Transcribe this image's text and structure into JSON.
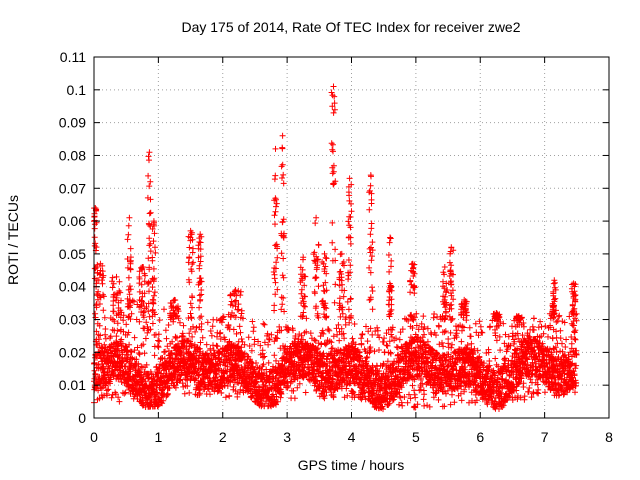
{
  "chart_data": {
    "type": "scatter",
    "title": "Day 175 of 2014, Rate Of TEC Index for receiver zwe2",
    "xlabel": "GPS time / hours",
    "ylabel": "ROTI / TECUs",
    "xlim": [
      0,
      8
    ],
    "ylim": [
      0,
      0.11
    ],
    "xticks": [
      0,
      1,
      2,
      3,
      4,
      5,
      6,
      7,
      8
    ],
    "yticks": [
      0,
      0.01,
      0.02,
      0.03,
      0.04,
      0.05,
      0.06,
      0.07,
      0.08,
      0.09,
      0.1,
      0.11
    ],
    "grid": true,
    "marker": "+",
    "series": [
      {
        "name": "ROTI",
        "color": "#ff0000",
        "x_range": [
          0,
          7.5
        ],
        "sample_step_hours": 0.0042,
        "band_min": [
          [
            0,
            0.004
          ],
          [
            1,
            0.006
          ],
          [
            2,
            0.006
          ],
          [
            3,
            0.006
          ],
          [
            4,
            0.006
          ],
          [
            5,
            0.003
          ],
          [
            6,
            0.004
          ],
          [
            7,
            0.006
          ],
          [
            7.5,
            0.007
          ]
        ],
        "band_max": [
          [
            0,
            0.028
          ],
          [
            0.3,
            0.034
          ],
          [
            0.6,
            0.036
          ],
          [
            1,
            0.034
          ],
          [
            1.5,
            0.03
          ],
          [
            2,
            0.032
          ],
          [
            2.5,
            0.03
          ],
          [
            3,
            0.028
          ],
          [
            3.5,
            0.026
          ],
          [
            4,
            0.032
          ],
          [
            4.3,
            0.028
          ],
          [
            4.5,
            0.03
          ],
          [
            5,
            0.032
          ],
          [
            5.5,
            0.032
          ],
          [
            6,
            0.03
          ],
          [
            6.5,
            0.03
          ],
          [
            7,
            0.032
          ],
          [
            7.5,
            0.032
          ]
        ],
        "spikes": [
          {
            "x": 0.02,
            "y": 0.064,
            "width": 0.04
          },
          {
            "x": 0.1,
            "y": 0.047,
            "width": 0.12
          },
          {
            "x": 0.35,
            "y": 0.043,
            "width": 0.15
          },
          {
            "x": 0.55,
            "y": 0.061,
            "width": 0.06
          },
          {
            "x": 0.75,
            "y": 0.046,
            "width": 0.1
          },
          {
            "x": 0.86,
            "y": 0.081,
            "width": 0.05
          },
          {
            "x": 0.93,
            "y": 0.06,
            "width": 0.05
          },
          {
            "x": 1.25,
            "y": 0.036,
            "width": 0.15
          },
          {
            "x": 1.5,
            "y": 0.057,
            "width": 0.08
          },
          {
            "x": 1.65,
            "y": 0.056,
            "width": 0.06
          },
          {
            "x": 2.2,
            "y": 0.039,
            "width": 0.2
          },
          {
            "x": 2.82,
            "y": 0.082,
            "width": 0.06
          },
          {
            "x": 2.93,
            "y": 0.086,
            "width": 0.05
          },
          {
            "x": 3.25,
            "y": 0.049,
            "width": 0.1
          },
          {
            "x": 3.45,
            "y": 0.061,
            "width": 0.08
          },
          {
            "x": 3.58,
            "y": 0.05,
            "width": 0.08
          },
          {
            "x": 3.72,
            "y": 0.101,
            "width": 0.06
          },
          {
            "x": 3.85,
            "y": 0.05,
            "width": 0.08
          },
          {
            "x": 3.97,
            "y": 0.073,
            "width": 0.06
          },
          {
            "x": 4.3,
            "y": 0.074,
            "width": 0.06
          },
          {
            "x": 4.6,
            "y": 0.055,
            "width": 0.05
          },
          {
            "x": 4.95,
            "y": 0.047,
            "width": 0.08
          },
          {
            "x": 5.45,
            "y": 0.046,
            "width": 0.08
          },
          {
            "x": 5.55,
            "y": 0.052,
            "width": 0.06
          },
          {
            "x": 5.75,
            "y": 0.036,
            "width": 0.1
          },
          {
            "x": 6.25,
            "y": 0.032,
            "width": 0.1
          },
          {
            "x": 6.6,
            "y": 0.031,
            "width": 0.1
          },
          {
            "x": 7.15,
            "y": 0.042,
            "width": 0.06
          },
          {
            "x": 7.45,
            "y": 0.041,
            "width": 0.06
          }
        ]
      }
    ]
  }
}
